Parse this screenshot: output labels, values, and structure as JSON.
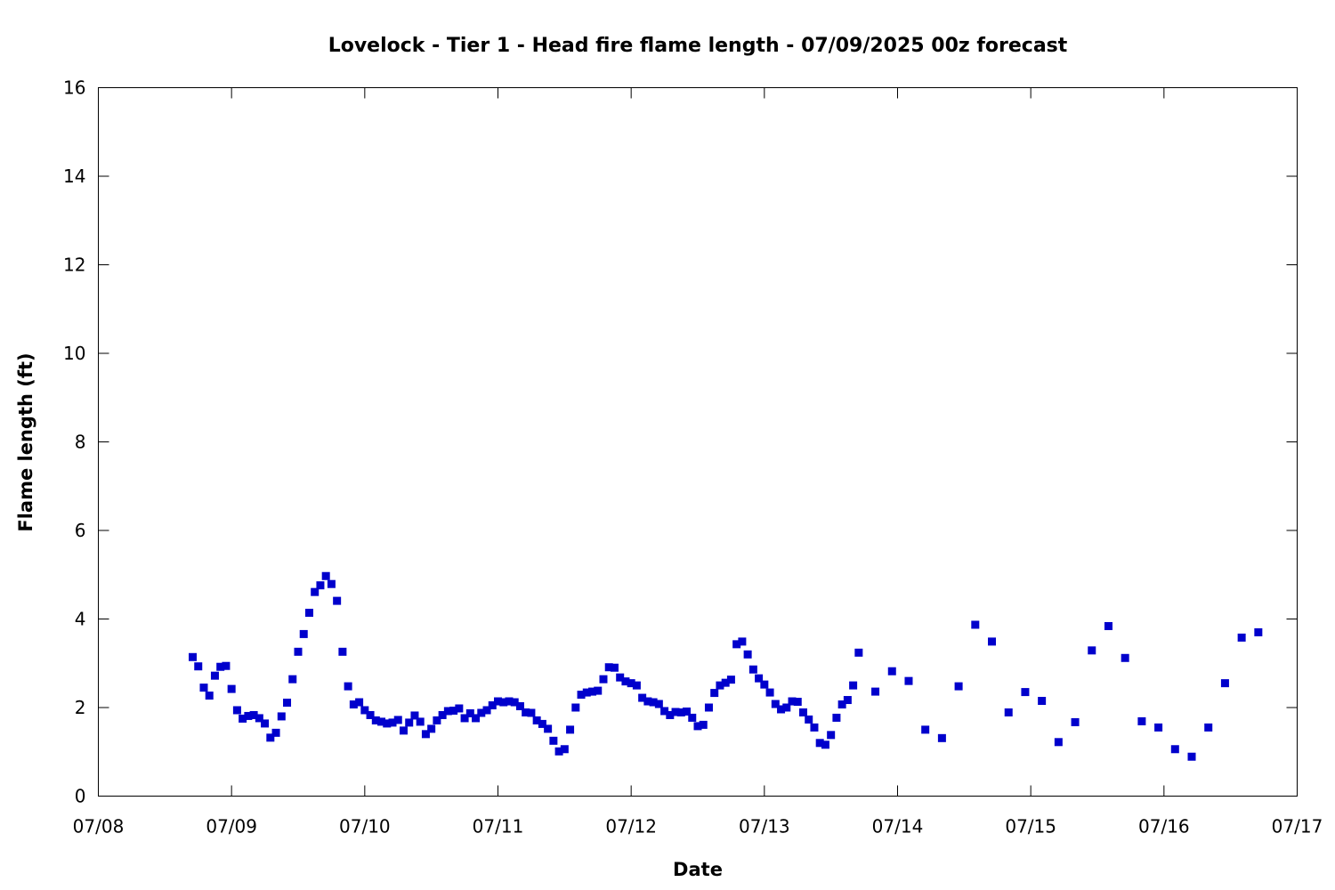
{
  "chart_data": {
    "type": "scatter",
    "title": "Lovelock - Tier 1 - Head fire flame length - 07/09/2025 00z forecast",
    "xlabel": "Date",
    "ylabel": "Flame length (ft)",
    "x_axis": "date",
    "xlim": [
      "2025-07-08T00:00",
      "2025-07-17T00:00"
    ],
    "xticks": [
      {
        "value": "2025-07-08T00:00",
        "label": "07/08"
      },
      {
        "value": "2025-07-09T00:00",
        "label": "07/09"
      },
      {
        "value": "2025-07-10T00:00",
        "label": "07/10"
      },
      {
        "value": "2025-07-11T00:00",
        "label": "07/11"
      },
      {
        "value": "2025-07-12T00:00",
        "label": "07/12"
      },
      {
        "value": "2025-07-13T00:00",
        "label": "07/13"
      },
      {
        "value": "2025-07-14T00:00",
        "label": "07/14"
      },
      {
        "value": "2025-07-15T00:00",
        "label": "07/15"
      },
      {
        "value": "2025-07-16T00:00",
        "label": "07/16"
      },
      {
        "value": "2025-07-17T00:00",
        "label": "07/17"
      }
    ],
    "ylim": [
      0,
      16
    ],
    "yticks": [
      0,
      2,
      4,
      6,
      8,
      10,
      12,
      14,
      16
    ],
    "grid": false,
    "legend": "none",
    "marker_color": "#0000cc",
    "series": [
      {
        "points": [
          [
            "2025-07-08T17:00",
            3.14
          ],
          [
            "2025-07-08T18:00",
            2.93
          ],
          [
            "2025-07-08T19:00",
            2.45
          ],
          [
            "2025-07-08T20:00",
            2.27
          ],
          [
            "2025-07-08T21:00",
            2.72
          ],
          [
            "2025-07-08T22:00",
            2.92
          ],
          [
            "2025-07-08T23:00",
            2.94
          ],
          [
            "2025-07-09T00:00",
            2.42
          ],
          [
            "2025-07-09T01:00",
            1.94
          ],
          [
            "2025-07-09T02:00",
            1.75
          ],
          [
            "2025-07-09T03:00",
            1.81
          ],
          [
            "2025-07-09T04:00",
            1.83
          ],
          [
            "2025-07-09T05:00",
            1.76
          ],
          [
            "2025-07-09T06:00",
            1.64
          ],
          [
            "2025-07-09T07:00",
            1.32
          ],
          [
            "2025-07-09T08:00",
            1.43
          ],
          [
            "2025-07-09T09:00",
            1.8
          ],
          [
            "2025-07-09T10:00",
            2.11
          ],
          [
            "2025-07-09T11:00",
            2.64
          ],
          [
            "2025-07-09T12:00",
            3.26
          ],
          [
            "2025-07-09T13:00",
            3.66
          ],
          [
            "2025-07-09T14:00",
            4.14
          ],
          [
            "2025-07-09T15:00",
            4.61
          ],
          [
            "2025-07-09T16:00",
            4.76
          ],
          [
            "2025-07-09T17:00",
            4.97
          ],
          [
            "2025-07-09T18:00",
            4.79
          ],
          [
            "2025-07-09T19:00",
            4.41
          ],
          [
            "2025-07-09T20:00",
            3.26
          ],
          [
            "2025-07-09T21:00",
            2.48
          ],
          [
            "2025-07-09T22:00",
            2.07
          ],
          [
            "2025-07-09T23:00",
            2.12
          ],
          [
            "2025-07-10T00:00",
            1.94
          ],
          [
            "2025-07-10T01:00",
            1.83
          ],
          [
            "2025-07-10T02:00",
            1.71
          ],
          [
            "2025-07-10T03:00",
            1.68
          ],
          [
            "2025-07-10T04:00",
            1.64
          ],
          [
            "2025-07-10T05:00",
            1.66
          ],
          [
            "2025-07-10T06:00",
            1.72
          ],
          [
            "2025-07-10T07:00",
            1.48
          ],
          [
            "2025-07-10T08:00",
            1.66
          ],
          [
            "2025-07-10T09:00",
            1.82
          ],
          [
            "2025-07-10T10:00",
            1.68
          ],
          [
            "2025-07-10T11:00",
            1.4
          ],
          [
            "2025-07-10T12:00",
            1.52
          ],
          [
            "2025-07-10T13:00",
            1.71
          ],
          [
            "2025-07-10T14:00",
            1.83
          ],
          [
            "2025-07-10T15:00",
            1.92
          ],
          [
            "2025-07-10T16:00",
            1.93
          ],
          [
            "2025-07-10T17:00",
            1.98
          ],
          [
            "2025-07-10T18:00",
            1.76
          ],
          [
            "2025-07-10T19:00",
            1.87
          ],
          [
            "2025-07-10T20:00",
            1.76
          ],
          [
            "2025-07-10T21:00",
            1.88
          ],
          [
            "2025-07-10T22:00",
            1.94
          ],
          [
            "2025-07-10T23:00",
            2.05
          ],
          [
            "2025-07-11T00:00",
            2.14
          ],
          [
            "2025-07-11T01:00",
            2.12
          ],
          [
            "2025-07-11T02:00",
            2.14
          ],
          [
            "2025-07-11T03:00",
            2.12
          ],
          [
            "2025-07-11T04:00",
            2.03
          ],
          [
            "2025-07-11T05:00",
            1.89
          ],
          [
            "2025-07-11T06:00",
            1.88
          ],
          [
            "2025-07-11T07:00",
            1.71
          ],
          [
            "2025-07-11T08:00",
            1.63
          ],
          [
            "2025-07-11T09:00",
            1.52
          ],
          [
            "2025-07-11T10:00",
            1.25
          ],
          [
            "2025-07-11T11:00",
            1.01
          ],
          [
            "2025-07-11T12:00",
            1.06
          ],
          [
            "2025-07-11T13:00",
            1.5
          ],
          [
            "2025-07-11T14:00",
            2.0
          ],
          [
            "2025-07-11T15:00",
            2.29
          ],
          [
            "2025-07-11T16:00",
            2.34
          ],
          [
            "2025-07-11T17:00",
            2.36
          ],
          [
            "2025-07-11T18:00",
            2.38
          ],
          [
            "2025-07-11T19:00",
            2.64
          ],
          [
            "2025-07-11T20:00",
            2.91
          ],
          [
            "2025-07-11T21:00",
            2.9
          ],
          [
            "2025-07-11T22:00",
            2.68
          ],
          [
            "2025-07-11T23:00",
            2.59
          ],
          [
            "2025-07-12T00:00",
            2.55
          ],
          [
            "2025-07-12T01:00",
            2.5
          ],
          [
            "2025-07-12T02:00",
            2.22
          ],
          [
            "2025-07-12T03:00",
            2.14
          ],
          [
            "2025-07-12T04:00",
            2.12
          ],
          [
            "2025-07-12T05:00",
            2.08
          ],
          [
            "2025-07-12T06:00",
            1.92
          ],
          [
            "2025-07-12T07:00",
            1.83
          ],
          [
            "2025-07-12T08:00",
            1.9
          ],
          [
            "2025-07-12T09:00",
            1.89
          ],
          [
            "2025-07-12T10:00",
            1.91
          ],
          [
            "2025-07-12T11:00",
            1.77
          ],
          [
            "2025-07-12T12:00",
            1.58
          ],
          [
            "2025-07-12T13:00",
            1.61
          ],
          [
            "2025-07-12T14:00",
            2.0
          ],
          [
            "2025-07-12T15:00",
            2.33
          ],
          [
            "2025-07-12T16:00",
            2.5
          ],
          [
            "2025-07-12T17:00",
            2.56
          ],
          [
            "2025-07-12T18:00",
            2.63
          ],
          [
            "2025-07-12T19:00",
            3.43
          ],
          [
            "2025-07-12T20:00",
            3.49
          ],
          [
            "2025-07-12T21:00",
            3.2
          ],
          [
            "2025-07-12T22:00",
            2.86
          ],
          [
            "2025-07-12T23:00",
            2.66
          ],
          [
            "2025-07-13T00:00",
            2.52
          ],
          [
            "2025-07-13T01:00",
            2.34
          ],
          [
            "2025-07-13T02:00",
            2.08
          ],
          [
            "2025-07-13T03:00",
            1.96
          ],
          [
            "2025-07-13T04:00",
            2.0
          ],
          [
            "2025-07-13T05:00",
            2.14
          ],
          [
            "2025-07-13T06:00",
            2.13
          ],
          [
            "2025-07-13T07:00",
            1.89
          ],
          [
            "2025-07-13T08:00",
            1.73
          ],
          [
            "2025-07-13T09:00",
            1.55
          ],
          [
            "2025-07-13T10:00",
            1.2
          ],
          [
            "2025-07-13T11:00",
            1.16
          ],
          [
            "2025-07-13T12:00",
            1.38
          ],
          [
            "2025-07-13T13:00",
            1.77
          ],
          [
            "2025-07-13T14:00",
            2.07
          ],
          [
            "2025-07-13T15:00",
            2.17
          ],
          [
            "2025-07-13T16:00",
            2.5
          ],
          [
            "2025-07-13T17:00",
            3.24
          ],
          [
            "2025-07-13T20:00",
            2.36
          ],
          [
            "2025-07-13T23:00",
            2.82
          ],
          [
            "2025-07-14T02:00",
            2.6
          ],
          [
            "2025-07-14T05:00",
            1.5
          ],
          [
            "2025-07-14T08:00",
            1.31
          ],
          [
            "2025-07-14T11:00",
            2.48
          ],
          [
            "2025-07-14T14:00",
            3.87
          ],
          [
            "2025-07-14T17:00",
            3.49
          ],
          [
            "2025-07-14T20:00",
            1.89
          ],
          [
            "2025-07-14T23:00",
            2.35
          ],
          [
            "2025-07-15T02:00",
            2.15
          ],
          [
            "2025-07-15T05:00",
            1.22
          ],
          [
            "2025-07-15T08:00",
            1.67
          ],
          [
            "2025-07-15T11:00",
            3.29
          ],
          [
            "2025-07-15T14:00",
            3.84
          ],
          [
            "2025-07-15T17:00",
            3.12
          ],
          [
            "2025-07-15T20:00",
            1.69
          ],
          [
            "2025-07-15T23:00",
            1.55
          ],
          [
            "2025-07-16T02:00",
            1.06
          ],
          [
            "2025-07-16T05:00",
            0.89
          ],
          [
            "2025-07-16T08:00",
            1.55
          ],
          [
            "2025-07-16T11:00",
            2.55
          ],
          [
            "2025-07-16T14:00",
            3.58
          ],
          [
            "2025-07-16T17:00",
            3.7
          ]
        ]
      }
    ]
  }
}
